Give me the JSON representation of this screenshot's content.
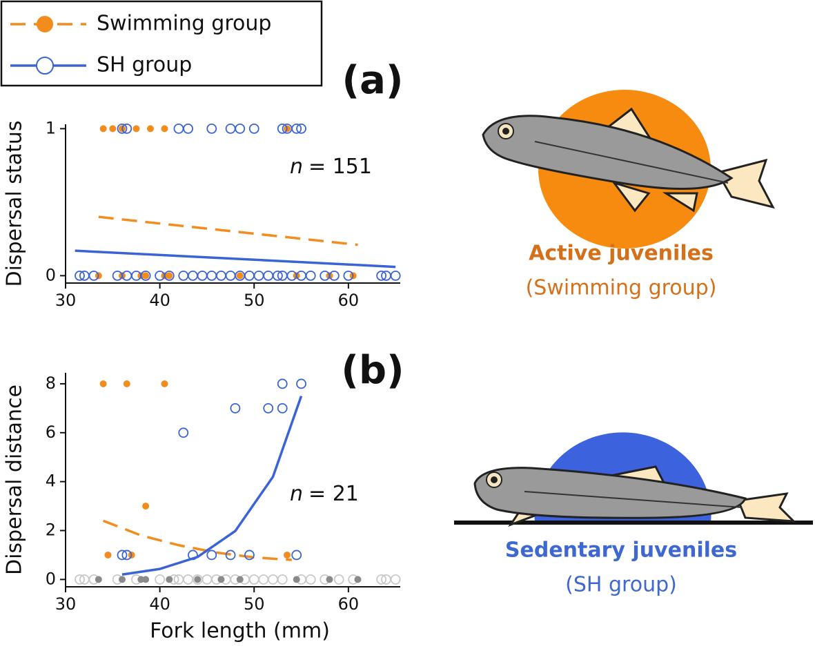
{
  "chart_data": [
    {
      "type": "scatter",
      "panel_label": "(a)",
      "ylabel": "Dispersal  status",
      "annotation_var": "n",
      "annotation": "= 151",
      "xlim": [
        30,
        65.5
      ],
      "ylim": [
        -0.05,
        1.03
      ],
      "xticks": [
        30,
        40,
        50,
        60
      ],
      "yticks": [
        0,
        1
      ],
      "series": [
        {
          "name": "Swimming group",
          "color": "#f28c1c",
          "marker": "filled",
          "x": [
            34,
            35,
            36,
            37.5,
            39,
            40.5,
            53.5,
            33.5,
            36,
            38,
            38.5,
            40.5,
            41,
            48.5,
            54.5,
            58,
            60.5
          ],
          "values": [
            1,
            1,
            1,
            1,
            1,
            1,
            1,
            0,
            0,
            0,
            0,
            0,
            0,
            0,
            0,
            0,
            0
          ]
        },
        {
          "name": "SH group",
          "color": "#3a64d6",
          "marker": "open",
          "x": [
            36,
            36.5,
            42,
            43,
            45.5,
            47.5,
            48.5,
            50,
            53,
            53.5,
            54.5,
            55,
            31.5,
            32,
            33,
            35.5,
            36.5,
            37.5,
            38.5,
            40,
            41,
            42.5,
            43.5,
            44.5,
            45.5,
            46.5,
            47.5,
            48.5,
            49.5,
            50.5,
            51.5,
            52.5,
            53,
            54,
            55,
            56,
            57.5,
            58.5,
            60,
            63.5,
            64,
            65
          ],
          "values": [
            1,
            1,
            1,
            1,
            1,
            1,
            1,
            1,
            1,
            1,
            1,
            1,
            0,
            0,
            0,
            0,
            0,
            0,
            0,
            0,
            0,
            0,
            0,
            0,
            0,
            0,
            0,
            0,
            0,
            0,
            0,
            0,
            0,
            0,
            0,
            0,
            0,
            0,
            0,
            0,
            0,
            0
          ]
        }
      ],
      "fits": [
        {
          "color": "#f28c1c",
          "dashed": true,
          "x": [
            33.5,
            61
          ],
          "values": [
            0.4,
            0.21
          ]
        },
        {
          "color": "#3a64d6",
          "dashed": false,
          "x": [
            31,
            65
          ],
          "values": [
            0.17,
            0.06
          ]
        }
      ]
    },
    {
      "type": "scatter",
      "panel_label": "(b)",
      "ylabel": "Dispersal distance",
      "xlabel": "Fork length (mm)",
      "annotation_var": "n",
      "annotation": "= 21",
      "xlim": [
        30,
        65.5
      ],
      "ylim": [
        -0.3,
        8.45
      ],
      "xticks": [
        30,
        40,
        50,
        60
      ],
      "yticks": [
        0,
        2,
        4,
        6,
        8
      ],
      "series": [
        {
          "color": "#c8c8c8",
          "marker": "open",
          "x": [
            31.5,
            32,
            33,
            35.5,
            37.5,
            40,
            41.5,
            42,
            43,
            44,
            45,
            46,
            47,
            48,
            49,
            50,
            51,
            52,
            53,
            55,
            56,
            57.5,
            59,
            60.5,
            63.5,
            64,
            65
          ],
          "values": [
            0,
            0,
            0,
            0,
            0,
            0,
            0,
            0,
            0,
            0,
            0,
            0,
            0,
            0,
            0,
            0,
            0,
            0,
            0,
            0,
            0,
            0,
            0,
            0,
            0,
            0,
            0
          ]
        },
        {
          "color": "#8a8a8a",
          "marker": "filled",
          "x": [
            33.5,
            36,
            38,
            38.5,
            41,
            44,
            46.5,
            48.5,
            54.5,
            58,
            61
          ],
          "values": [
            0,
            0,
            0,
            0,
            0,
            0,
            0,
            0,
            0,
            0,
            0
          ]
        },
        {
          "color": "#f28c1c",
          "marker": "filled",
          "x": [
            34,
            36.5,
            40.5,
            38.5,
            34.5,
            37,
            53.5
          ],
          "values": [
            8,
            8,
            8,
            3,
            1,
            1,
            1
          ]
        },
        {
          "color": "#3a64d6",
          "marker": "open",
          "x": [
            53,
            55,
            48,
            51.5,
            53,
            42.5,
            36,
            36.5,
            43.5,
            45.5,
            47.5,
            49.5,
            54.5
          ],
          "values": [
            8,
            8,
            7,
            7,
            7,
            6,
            1,
            1,
            1,
            1,
            1,
            1,
            1
          ]
        }
      ],
      "fits": [
        {
          "color": "#f28c1c",
          "dashed": true,
          "x": [
            34,
            38,
            42,
            46,
            50,
            54
          ],
          "values": [
            2.4,
            1.8,
            1.4,
            1.1,
            0.9,
            0.8
          ]
        },
        {
          "color": "#3a64d6",
          "dashed": false,
          "x": [
            36,
            40,
            44,
            48,
            52,
            55
          ],
          "values": [
            0.2,
            0.43,
            0.92,
            1.98,
            4.2,
            7.5
          ]
        }
      ]
    }
  ],
  "illustrations": [
    {
      "title": "Active juveniles",
      "subtitle": "(Swimming group)"
    },
    {
      "title": "Sedentary juveniles",
      "subtitle": "(SH group)"
    }
  ]
}
